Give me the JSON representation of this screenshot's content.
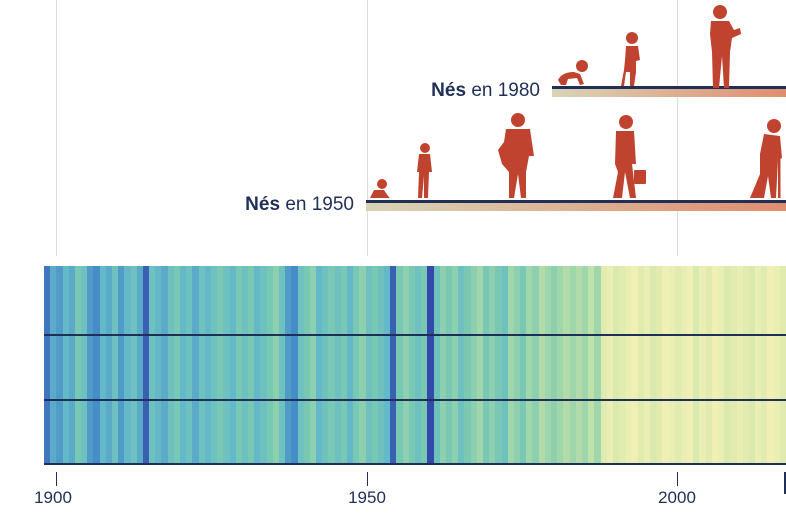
{
  "cohorts": [
    {
      "bold": "Nés",
      "rest": "en 1980",
      "year": 1980
    },
    {
      "bold": "Nés",
      "rest": "en 1950",
      "year": 1950
    }
  ],
  "chart_data": {
    "type": "heatmap",
    "title": "",
    "x_range": [
      1900,
      2020
    ],
    "x_ticks": [
      1900,
      1950,
      2000
    ],
    "tick_labels": [
      "1900",
      "1950",
      "2000"
    ],
    "stripe_values": [
      -0.3,
      -0.15,
      -0.2,
      -0.1,
      -0.15,
      0.0,
      -0.05,
      -0.2,
      -0.25,
      -0.1,
      -0.15,
      -0.05,
      -0.2,
      -0.1,
      -0.05,
      -0.15,
      -0.35,
      -0.05,
      -0.1,
      -0.15,
      -0.05,
      0.0,
      -0.1,
      -0.05,
      -0.15,
      -0.05,
      -0.1,
      -0.05,
      0.0,
      -0.05,
      -0.1,
      0.0,
      -0.05,
      0.0,
      -0.1,
      -0.05,
      0.0,
      0.05,
      -0.05,
      -0.2,
      -0.25,
      -0.05,
      0.0,
      0.05,
      -0.1,
      -0.05,
      0.0,
      -0.05,
      0.0,
      -0.1,
      0.0,
      0.05,
      -0.05,
      0.0,
      -0.05,
      -0.1,
      -0.35,
      0.0,
      0.05,
      0.0,
      -0.05,
      0.0,
      -0.4,
      -0.05,
      0.05,
      0.0,
      0.05,
      -0.05,
      0.0,
      0.05,
      0.1,
      0.0,
      0.05,
      0.0,
      -0.05,
      0.1,
      0.05,
      0.0,
      0.1,
      0.05,
      0.15,
      0.1,
      0.05,
      0.1,
      0.15,
      0.1,
      0.15,
      0.1,
      0.2,
      0.1,
      0.35,
      0.4,
      0.3,
      0.35,
      0.4,
      0.45,
      0.35,
      0.4,
      0.3,
      0.35,
      0.45,
      0.4,
      0.35,
      0.4,
      0.45,
      0.3,
      0.4,
      0.35,
      0.45,
      0.4,
      0.3,
      0.35,
      0.4,
      0.35,
      0.3,
      0.4,
      0.35,
      0.45,
      0.4,
      0.35
    ],
    "stages": [
      {
        "cohort": 1980,
        "figures": [
          "bebe",
          "enfant",
          "adulte"
        ]
      },
      {
        "cohort": 1950,
        "figures": [
          "bebe",
          "enfant",
          "jeune",
          "adulte",
          "senior"
        ]
      }
    ]
  }
}
